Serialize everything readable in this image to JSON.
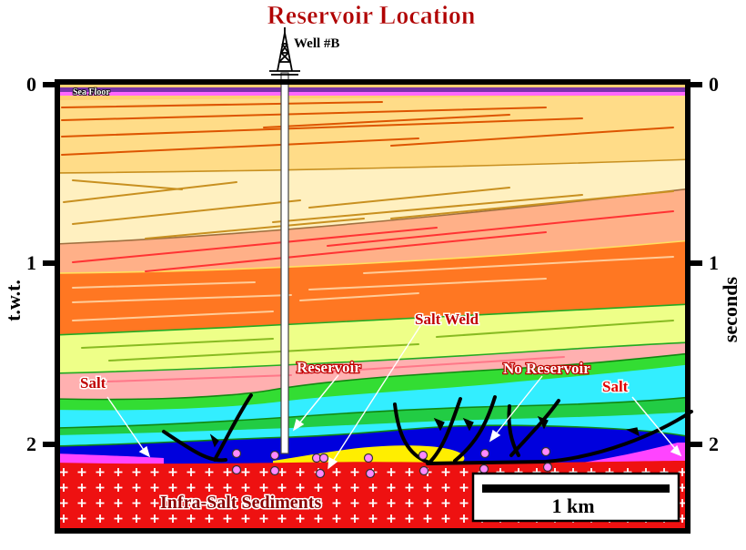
{
  "title": "Reservoir Location",
  "well": {
    "label": "Well #B"
  },
  "left_axis": {
    "label": "t.w.t.",
    "ticks": [
      "0",
      "1",
      "2"
    ]
  },
  "right_axis": {
    "label": "seconds",
    "ticks": [
      "0",
      "1",
      "2"
    ]
  },
  "labels": {
    "sea_floor": "Sea Floor",
    "salt_left": "Salt",
    "salt_right": "Salt",
    "reservoir": "Reservoir",
    "no_reservoir": "No Reservoir",
    "salt_weld": "Salt Weld",
    "infra_salt": "Infra-Salt Sediments"
  },
  "scale_bar": {
    "label": "1 km"
  },
  "colors": {
    "title": "#b00000",
    "infra_salt": "#ee1111",
    "salt": "#ff44ff",
    "reservoir": "#ffee00",
    "deep_blue": "#0000dd",
    "cyan": "#33eeff",
    "green": "#33dd33",
    "pink": "#ffb0b0",
    "yellow_green": "#eeff88",
    "orange": "#ff7722",
    "salmon": "#ffb088",
    "cream": "#fff0c0",
    "sand": "#ffd070",
    "frame": "#000000"
  }
}
